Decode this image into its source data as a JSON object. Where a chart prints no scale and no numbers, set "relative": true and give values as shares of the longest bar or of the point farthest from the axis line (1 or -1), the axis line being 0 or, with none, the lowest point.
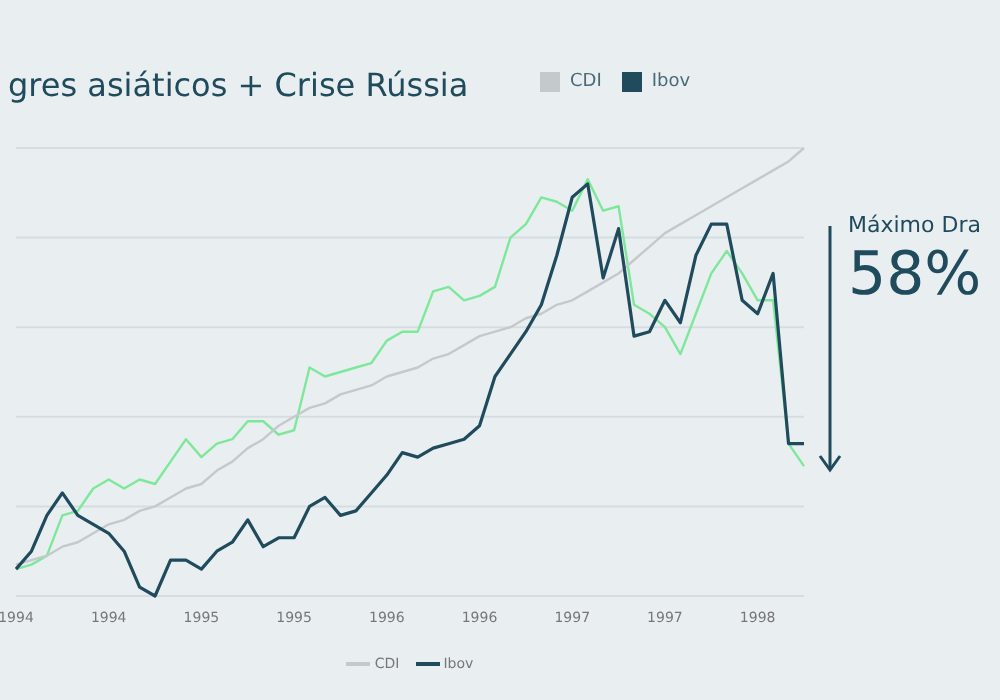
{
  "chart_data": {
    "type": "line",
    "title": "gres asiáticos + Crise Rússia",
    "relative": true,
    "grid": "y",
    "legend": "top",
    "marker": "none",
    "line_style": "solid",
    "categories": [
      "1994",
      null,
      null,
      null,
      null,
      null,
      "1994",
      null,
      null,
      null,
      null,
      null,
      "1995",
      null,
      null,
      null,
      null,
      null,
      "1995",
      null,
      null,
      null,
      null,
      null,
      "1996",
      null,
      null,
      null,
      null,
      null,
      "1996",
      null,
      null,
      null,
      null,
      null,
      "1997",
      null,
      null,
      null,
      null,
      null,
      "1997",
      null,
      null,
      null,
      null,
      null,
      "1998",
      null,
      null,
      null
    ],
    "series": [
      {
        "color": "#7ee89a",
        "values": [
          0.06,
          0.07,
          0.09,
          0.18,
          0.19,
          0.24,
          0.26,
          0.24,
          0.26,
          0.25,
          0.3,
          0.35,
          0.31,
          0.34,
          0.35,
          0.39,
          0.39,
          0.36,
          0.37,
          0.51,
          0.49,
          0.5,
          0.51,
          0.52,
          0.57,
          0.59,
          0.59,
          0.68,
          0.69,
          0.66,
          0.67,
          0.69,
          0.8,
          0.83,
          0.89,
          0.88,
          0.86,
          0.93,
          0.86,
          0.87,
          0.65,
          0.63,
          0.6,
          0.54,
          0.63,
          0.72,
          0.77,
          0.72,
          0.66,
          0.66,
          0.34,
          0.29
        ]
      },
      {
        "name": "CDI",
        "color": "#c4c9cc",
        "values": [
          0.07,
          0.08,
          0.09,
          0.11,
          0.12,
          0.14,
          0.16,
          0.17,
          0.19,
          0.2,
          0.22,
          0.24,
          0.25,
          0.28,
          0.3,
          0.33,
          0.35,
          0.38,
          0.4,
          0.42,
          0.43,
          0.45,
          0.46,
          0.47,
          0.49,
          0.5,
          0.51,
          0.53,
          0.54,
          0.56,
          0.58,
          0.59,
          0.6,
          0.62,
          0.63,
          0.65,
          0.66,
          0.68,
          0.7,
          0.72,
          0.75,
          0.78,
          0.81,
          0.83,
          0.85,
          0.87,
          0.89,
          0.91,
          0.93,
          0.95,
          0.97,
          1.0
        ]
      },
      {
        "name": "Ibov",
        "color": "#1f4b5c",
        "values": [
          0.06,
          0.1,
          0.18,
          0.23,
          0.18,
          0.16,
          0.14,
          0.1,
          0.02,
          0,
          0.08,
          0.08,
          0.06,
          0.1,
          0.12,
          0.17,
          0.11,
          0.13,
          0.13,
          0.2,
          0.22,
          0.18,
          0.19,
          0.23,
          0.27,
          0.32,
          0.31,
          0.33,
          0.34,
          0.35,
          0.38,
          0.49,
          0.54,
          0.59,
          0.65,
          0.76,
          0.89,
          0.92,
          0.71,
          0.82,
          0.58,
          0.59,
          0.66,
          0.61,
          0.76,
          0.83,
          0.83,
          0.66,
          0.63,
          0.72,
          0.34,
          0.34
        ]
      }
    ],
    "annotations": [
      "Máximo Dra",
      "58%"
    ]
  }
}
